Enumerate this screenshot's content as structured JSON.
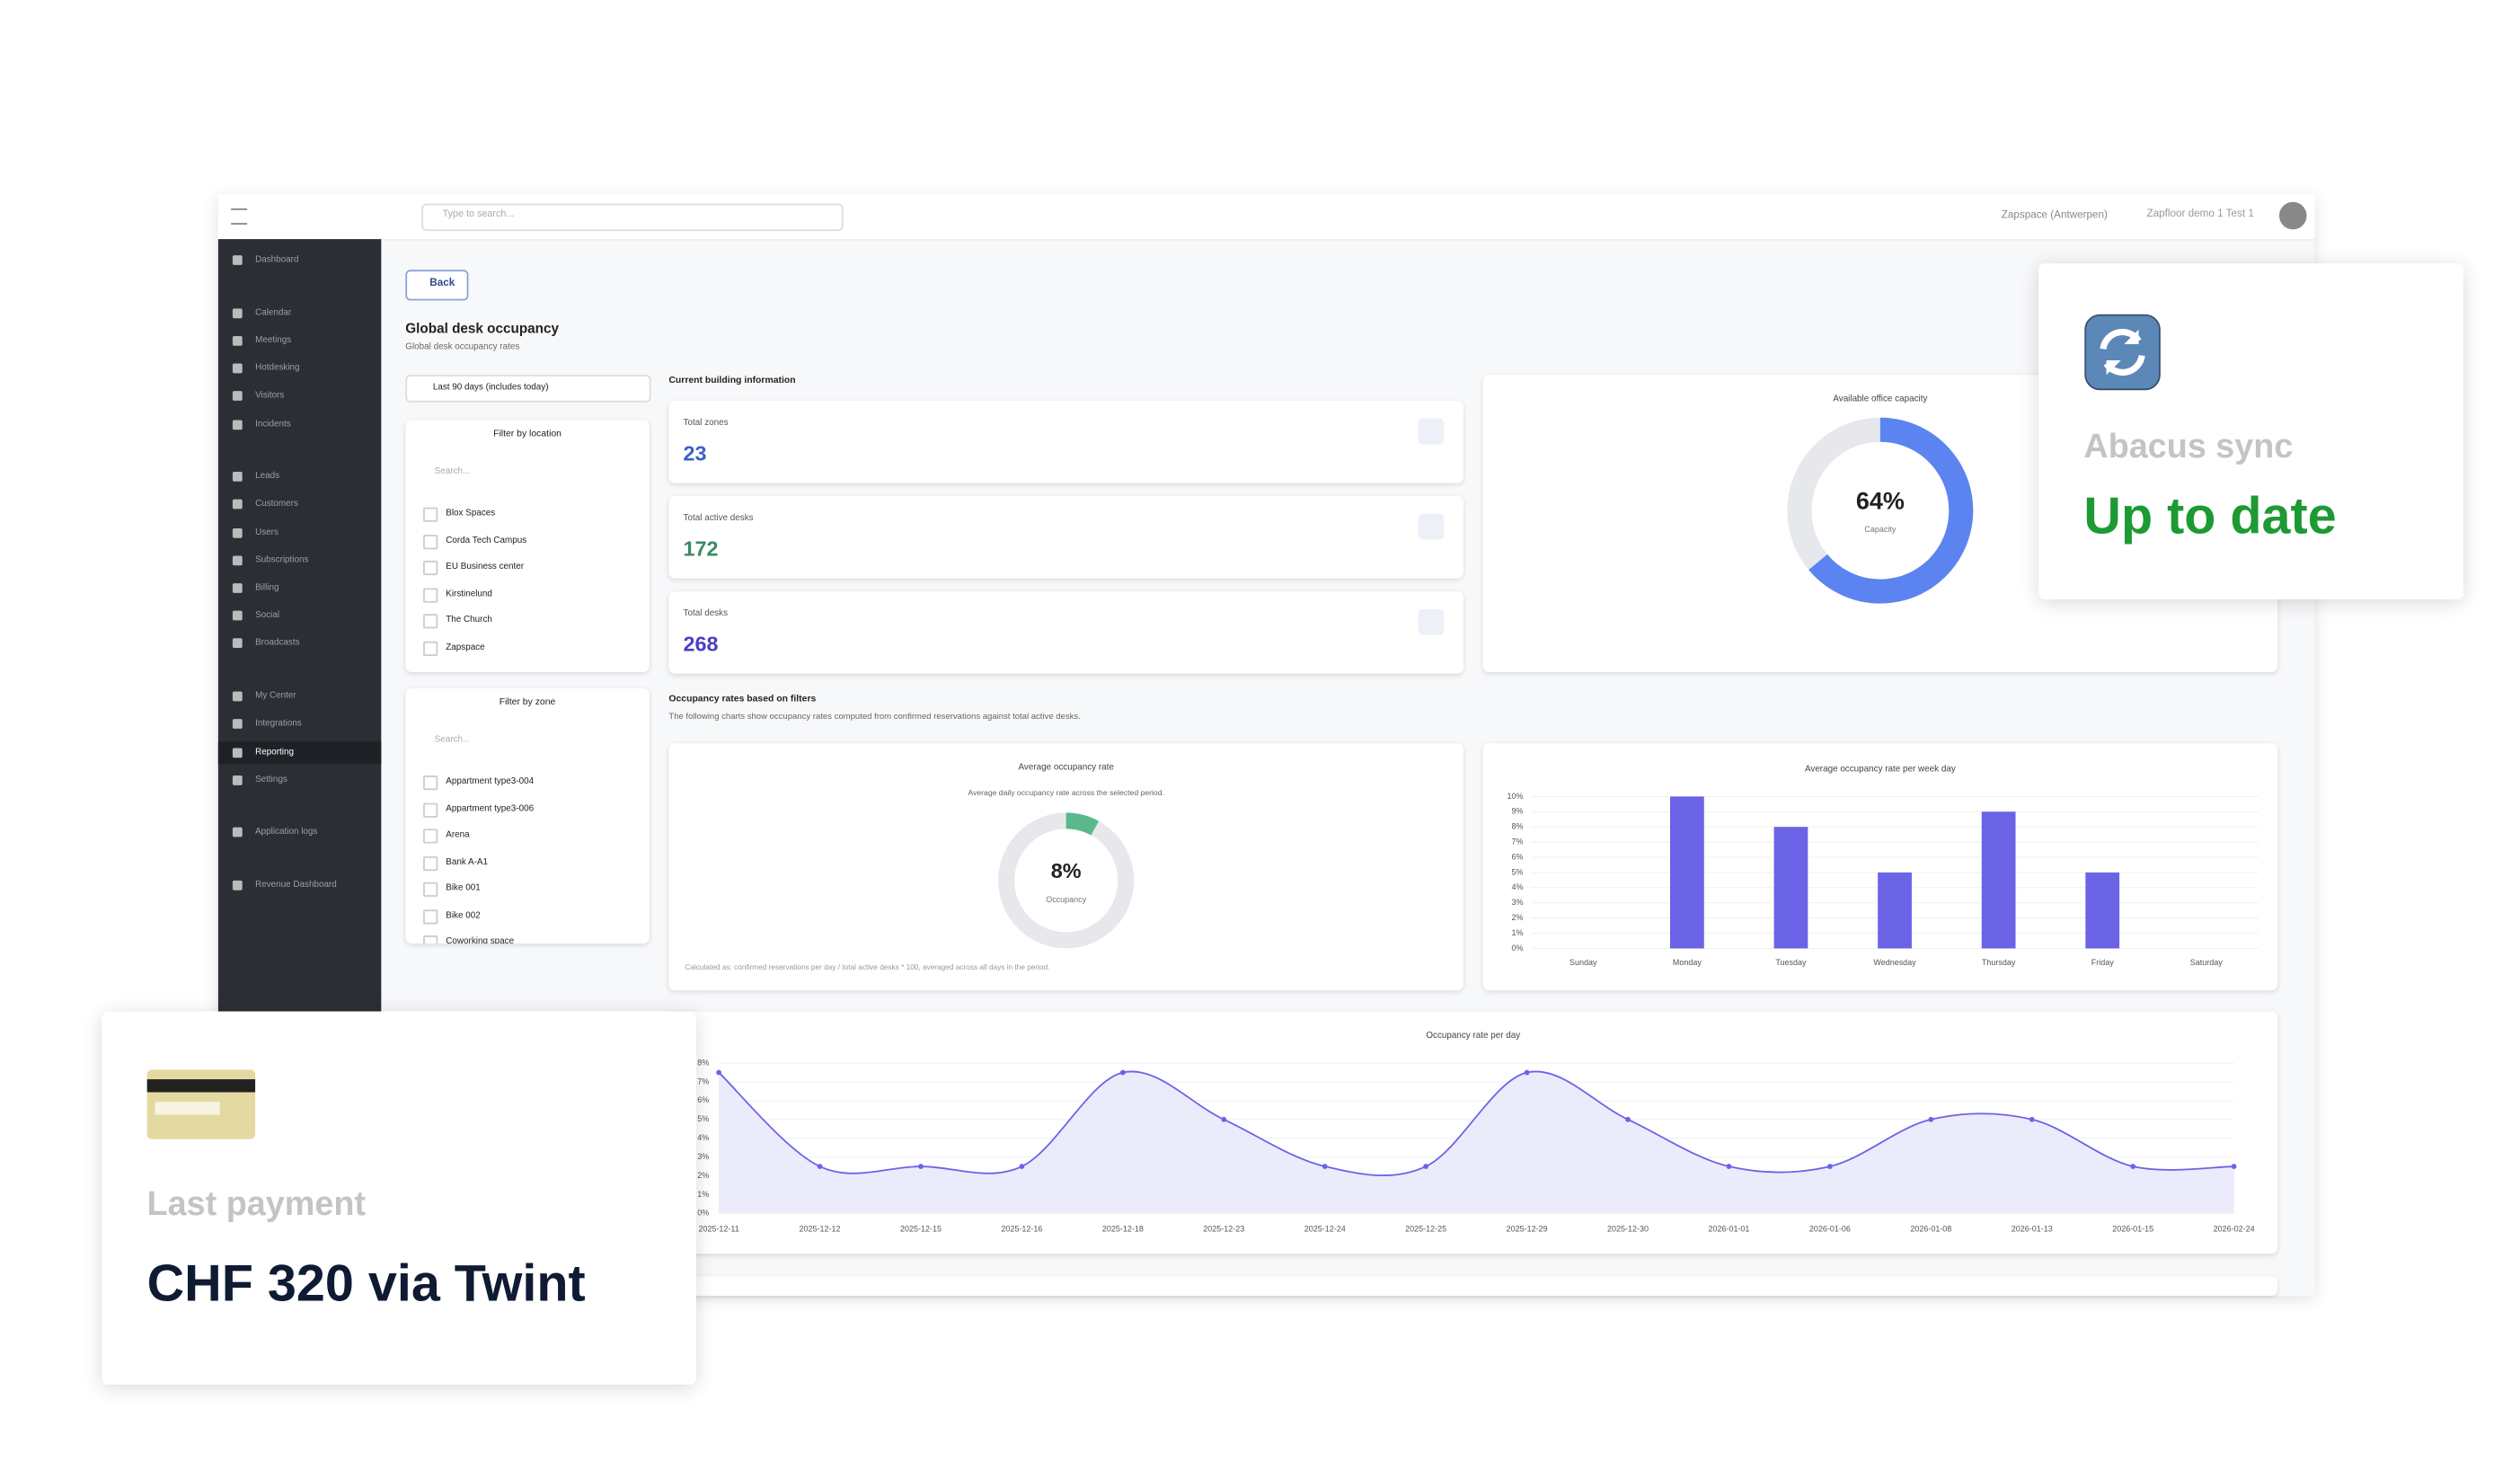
{
  "topbar": {
    "search_placeholder": "Type to search...",
    "location": "Zapspace (Antwerpen)",
    "user": "Zapfloor demo 1 Test 1"
  },
  "sidebar": [
    [
      "Dashboard"
    ],
    [
      "Calendar",
      "Meetings",
      "Hotdesking",
      "Visitors",
      "Incidents"
    ],
    [
      "Leads",
      "Customers",
      "Users",
      "Subscriptions",
      "Billing",
      "Social",
      "Broadcasts"
    ],
    [
      "My Center",
      "Integrations",
      "Reporting",
      "Settings"
    ],
    [
      "Application logs"
    ],
    [
      "Revenue Dashboard"
    ]
  ],
  "page": {
    "back": "Back",
    "title": "Global desk occupancy",
    "subtitle": "Global desk occupancy rates",
    "date_filter": "Last 90 days (includes today)"
  },
  "filters": [
    {
      "title": "Filter by location",
      "search": "Search...",
      "items": [
        "Blox Spaces",
        "Corda Tech Campus",
        "EU Business center",
        "Kirstinelund",
        "The Church",
        "Zapspace"
      ]
    },
    {
      "title": "Filter by zone",
      "search": "Search...",
      "items": [
        "Appartment type3-004",
        "Appartment type3-006",
        "Arena",
        "Bank A-A1",
        "Bike 001",
        "Bike 002",
        "Coworking space"
      ]
    }
  ],
  "building_info": {
    "heading": "Current building information",
    "cards": [
      {
        "label": "Total zones",
        "value": "23"
      },
      {
        "label": "Total active desks",
        "value": "172"
      },
      {
        "label": "Total desks",
        "value": "268"
      }
    ]
  },
  "occupancy_section": {
    "heading": "Occupancy rates based on filters",
    "description": "The following charts show occupancy rates computed from confirmed reservations against total active desks."
  },
  "chart_data": [
    {
      "type": "donut",
      "title": "Available office capacity",
      "values": [
        64
      ],
      "value_labels": [
        "64%"
      ],
      "center_label": "Capacity",
      "color": "#5b84f0",
      "track_color": "#e6e8ec",
      "ylim": [
        0,
        100
      ]
    },
    {
      "type": "donut",
      "title": "Average occupancy rate",
      "subtitle": "Average daily occupancy rate across the selected period.",
      "values": [
        8
      ],
      "value_labels": [
        "8%"
      ],
      "center_label": "Occupancy",
      "footnote": "Calculated as: confirmed reservations per day / total active desks * 100, averaged across all days in the period.",
      "color": "#5bb88a",
      "track_color": "#e6e8ec",
      "ylim": [
        0,
        100
      ]
    },
    {
      "type": "bar",
      "title": "Average occupancy rate per week day",
      "categories": [
        "Sunday",
        "Monday",
        "Tuesday",
        "Wednesday",
        "Thursday",
        "Friday",
        "Saturday"
      ],
      "values": [
        0,
        10,
        8,
        5,
        9,
        5,
        0
      ],
      "color": "#6b63e6",
      "ylim": [
        0,
        10
      ],
      "yticks": [
        {
          "value": 0,
          "label": "0%"
        },
        {
          "value": 1,
          "label": "1%"
        },
        {
          "value": 2,
          "label": "2%"
        },
        {
          "value": 3,
          "label": "3%"
        },
        {
          "value": 4,
          "label": "4%"
        },
        {
          "value": 5,
          "label": "5%"
        },
        {
          "value": 6,
          "label": "6%"
        },
        {
          "value": 7,
          "label": "7%"
        },
        {
          "value": 8,
          "label": "8%"
        },
        {
          "value": 9,
          "label": "9%"
        },
        {
          "value": 10,
          "label": "10%"
        }
      ],
      "grid": true
    },
    {
      "type": "line",
      "title": "Occupancy rate per day",
      "categories": [
        "2025-12-11",
        "2025-12-12",
        "2025-12-15",
        "2025-12-16",
        "2025-12-18",
        "2025-12-23",
        "2025-12-24",
        "2025-12-25",
        "2025-12-29",
        "2025-12-30",
        "2026-01-01",
        "2026-01-06",
        "2026-01-08",
        "2026-01-13",
        "2026-01-15",
        "2026-02-24"
      ],
      "values": [
        7.5,
        2.5,
        2.5,
        2.5,
        7.5,
        5,
        2.5,
        2.5,
        7.5,
        5,
        2.5,
        2.5,
        5,
        5,
        2.5,
        2.5
      ],
      "color": "#6b63e6",
      "fill": "#ecebfb",
      "ylim": [
        0,
        8
      ],
      "yticks": [
        {
          "value": 0,
          "label": "0%"
        },
        {
          "value": 1,
          "label": "1%"
        },
        {
          "value": 2,
          "label": "2%"
        },
        {
          "value": 3,
          "label": "3%"
        },
        {
          "value": 4,
          "label": "4%"
        },
        {
          "value": 5,
          "label": "5%"
        },
        {
          "value": 6,
          "label": "6%"
        },
        {
          "value": 7,
          "label": "7%"
        },
        {
          "value": 8,
          "label": "8%"
        }
      ],
      "grid": true
    }
  ],
  "sync_card": {
    "title": "Abacus sync",
    "status": "Up to date"
  },
  "payment_card": {
    "title": "Last payment",
    "amount": "CHF 320 via Twint"
  }
}
